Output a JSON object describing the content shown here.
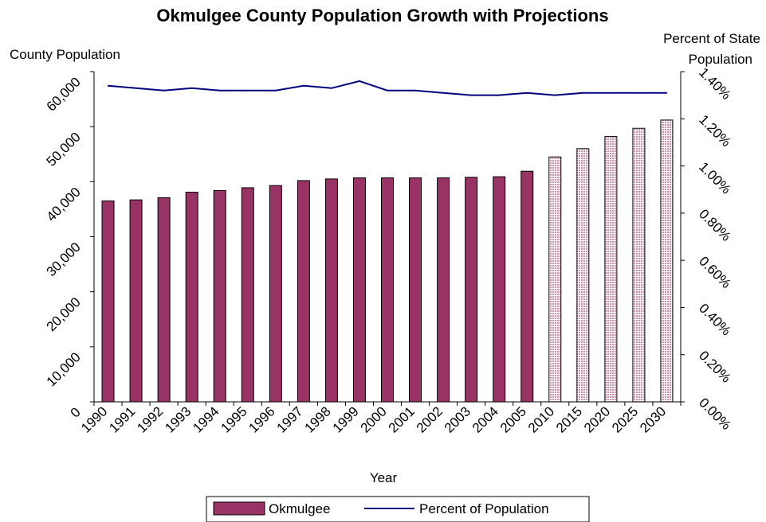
{
  "chart_data": {
    "type": "bar",
    "title": "Okmulgee County Population Growth with Projections",
    "xlabel": "Year",
    "ylabel": "County Population",
    "y2label": [
      "Percent of State",
      "Population"
    ],
    "ylim": [
      0,
      60000
    ],
    "yticks": [
      "0",
      "10,000",
      "20,000",
      "30,000",
      "40,000",
      "50,000",
      "60,000"
    ],
    "y2lim": [
      0,
      1.4
    ],
    "y2ticks": [
      "0.00%",
      "0.20%",
      "0.40%",
      "0.60%",
      "0.80%",
      "1.00%",
      "1.20%",
      "1.40%"
    ],
    "categories": [
      "1990",
      "1991",
      "1992",
      "1993",
      "1994",
      "1995",
      "1996",
      "1997",
      "1998",
      "1999",
      "2000",
      "2001",
      "2002",
      "2003",
      "2004",
      "2005",
      "2010",
      "2015",
      "2020",
      "2025",
      "2030"
    ],
    "series": [
      {
        "name": "Okmulgee",
        "type": "bar",
        "color": "#993366",
        "values": [
          36500,
          36700,
          37100,
          38100,
          38400,
          38900,
          39300,
          40200,
          40500,
          40700,
          40700,
          40700,
          40700,
          40800,
          40900,
          41900,
          44500,
          46000,
          48200,
          49700,
          51200
        ],
        "projected_from_index": 16
      },
      {
        "name": "Percent of Population",
        "type": "line",
        "color": "#000080",
        "values": [
          1.34,
          1.33,
          1.32,
          1.33,
          1.32,
          1.32,
          1.32,
          1.34,
          1.33,
          1.36,
          1.32,
          1.32,
          1.31,
          1.3,
          1.3,
          1.31,
          1.3,
          1.31,
          1.31,
          1.31,
          1.31
        ]
      }
    ],
    "legend": {
      "position": "bottom",
      "items": [
        "Okmulgee",
        "Percent of Population"
      ]
    },
    "grid": false
  }
}
